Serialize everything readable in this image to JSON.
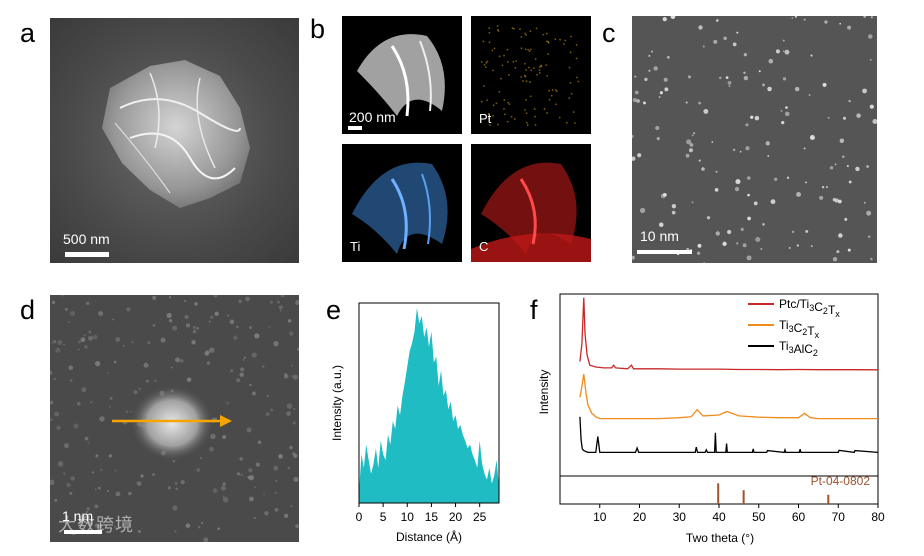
{
  "panels": {
    "a": {
      "letter": "a",
      "scale_label": "500 nm"
    },
    "b": {
      "letter": "b",
      "scale_label": "200 nm",
      "maps": [
        "Pt",
        "Ti",
        "C"
      ]
    },
    "c": {
      "letter": "c",
      "scale_label": "10 nm"
    },
    "d": {
      "letter": "d",
      "scale_label": "1 nm"
    },
    "e": {
      "letter": "e"
    },
    "f": {
      "letter": "f"
    }
  },
  "watermark": "大数跨境",
  "colors": {
    "ptc": "#c8282a",
    "ti3c2tx": "#f08c1e",
    "ti3alc2": "#000000",
    "ref": "#a0522d",
    "profile": "#1fbcc4",
    "arrow": "#f5a400",
    "pt_map": "#c8941e",
    "ti_map": "#3c82d2",
    "c_map": "#d21e1e"
  },
  "chart_data": [
    {
      "type": "area",
      "panel": "e",
      "xlabel": "Distance (Å)",
      "ylabel": "Intensity (a.u.)",
      "xlim": [
        0,
        29
      ],
      "xticks": [
        0,
        5,
        10,
        15,
        20,
        25
      ],
      "x": [
        0,
        0.5,
        1,
        1.5,
        2,
        2.5,
        3,
        3.5,
        4,
        4.5,
        5,
        5.5,
        6,
        6.5,
        7,
        7.5,
        8,
        8.5,
        9,
        9.5,
        10,
        10.5,
        11,
        11.5,
        12,
        12.5,
        13,
        13.5,
        14,
        14.5,
        15,
        15.5,
        16,
        16.5,
        17,
        17.5,
        18,
        18.5,
        19,
        19.5,
        20,
        20.5,
        21,
        21.5,
        22,
        22.5,
        23,
        23.5,
        24,
        24.5,
        25,
        25.5,
        26,
        26.5,
        27,
        27.5,
        28,
        28.5,
        29
      ],
      "values": [
        0.05,
        0.25,
        0.18,
        0.3,
        0.22,
        0.15,
        0.2,
        0.28,
        0.18,
        0.32,
        0.25,
        0.22,
        0.35,
        0.3,
        0.42,
        0.38,
        0.5,
        0.45,
        0.55,
        0.62,
        0.7,
        0.78,
        0.82,
        0.88,
        1.0,
        0.92,
        0.96,
        0.85,
        0.9,
        0.8,
        0.88,
        0.72,
        0.75,
        0.6,
        0.68,
        0.55,
        0.58,
        0.48,
        0.52,
        0.42,
        0.45,
        0.38,
        0.4,
        0.35,
        0.32,
        0.28,
        0.3,
        0.25,
        0.22,
        0.18,
        0.32,
        0.2,
        0.15,
        0.12,
        0.18,
        0.1,
        0.14,
        0.22,
        0.08
      ]
    },
    {
      "type": "line",
      "panel": "f",
      "xlabel": "Two theta (°)",
      "ylabel": "Intensity",
      "xlim": [
        0,
        80
      ],
      "xticks": [
        10,
        20,
        30,
        40,
        50,
        60,
        70,
        80
      ],
      "legend_position": "top-right",
      "series": [
        {
          "name": "Ptc/Ti3C2Tx",
          "legend_main": "Ptc/Ti",
          "legend_parts": [
            [
              "3",
              ""
            ],
            [
              "C",
              ""
            ],
            [
              "2",
              ""
            ],
            [
              "T",
              ""
            ],
            [
              "x",
              ""
            ]
          ],
          "color_key": "ptc",
          "x": [
            5,
            5.5,
            6,
            6.3,
            6.8,
            7.5,
            9,
            11,
            13,
            13.5,
            14,
            17,
            18,
            18.5,
            20,
            25,
            30,
            35,
            40,
            45,
            50,
            55,
            60,
            65,
            70,
            75,
            80
          ],
          "values": [
            0.62,
            0.72,
            0.98,
            0.78,
            0.66,
            0.6,
            0.59,
            0.585,
            0.585,
            0.6,
            0.585,
            0.58,
            0.6,
            0.58,
            0.58,
            0.58,
            0.578,
            0.578,
            0.578,
            0.576,
            0.576,
            0.575,
            0.576,
            0.575,
            0.575,
            0.575,
            0.574
          ]
        },
        {
          "name": "Ti3C2Tx",
          "color_key": "ti3c2tx",
          "x": [
            5,
            5.5,
            6,
            6.5,
            7,
            8,
            9,
            10,
            12,
            15,
            20,
            25,
            30,
            33,
            34.5,
            36,
            40,
            42,
            45,
            50,
            55,
            60,
            61.5,
            63,
            65,
            70,
            75,
            80
          ],
          "values": [
            0.42,
            0.48,
            0.55,
            0.45,
            0.38,
            0.33,
            0.31,
            0.3,
            0.3,
            0.3,
            0.3,
            0.3,
            0.305,
            0.31,
            0.35,
            0.315,
            0.32,
            0.34,
            0.315,
            0.308,
            0.305,
            0.305,
            0.33,
            0.305,
            0.3,
            0.3,
            0.3,
            0.3
          ]
        },
        {
          "name": "Ti3AlC2",
          "color_key": "ti3alc2",
          "x": [
            5,
            5.3,
            5.6,
            6,
            7,
            9,
            9.5,
            10,
            12,
            19,
            19.4,
            19.8,
            30,
            34,
            34.3,
            34.6,
            36.5,
            36.8,
            37.1,
            38.9,
            39.1,
            39.3,
            41.7,
            41.9,
            42.1,
            48.4,
            48.6,
            48.8,
            52,
            52.2,
            56.4,
            56.6,
            56.8,
            60.2,
            60.4,
            60.6,
            70,
            70.2,
            74,
            74.2,
            80
          ],
          "values": [
            0.31,
            0.18,
            0.13,
            0.12,
            0.11,
            0.11,
            0.2,
            0.11,
            0.11,
            0.11,
            0.135,
            0.11,
            0.11,
            0.11,
            0.14,
            0.11,
            0.11,
            0.125,
            0.11,
            0.11,
            0.22,
            0.11,
            0.11,
            0.16,
            0.11,
            0.11,
            0.13,
            0.11,
            0.11,
            0.12,
            0.11,
            0.125,
            0.11,
            0.11,
            0.128,
            0.11,
            0.11,
            0.122,
            0.11,
            0.12,
            0.11
          ]
        }
      ],
      "reference": {
        "label": "Pt-04-0802",
        "peaks": [
          39.8,
          46.2,
          67.5
        ],
        "heights": [
          0.09,
          0.06,
          0.04
        ]
      }
    }
  ]
}
